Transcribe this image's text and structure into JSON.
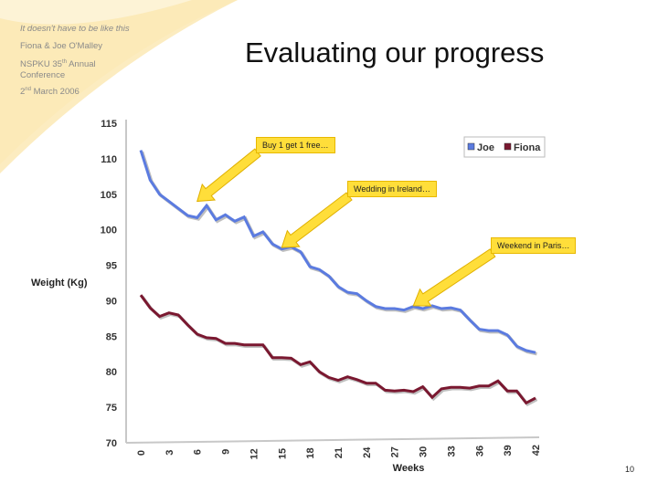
{
  "slide": {
    "header_line1": "It doesn't have to be like this",
    "header_line2": "Fiona & Joe O'Malley",
    "header_line3_pre": "NSPKU 35",
    "header_line3_sup": "th",
    "header_line3_post": " Annual Conference",
    "header_line4_pre": "2",
    "header_line4_sup": "nd",
    "header_line4_post": " March 2006",
    "title": "Evaluating our progress",
    "page_number": "10"
  },
  "colors": {
    "joe": "#5b7be0",
    "fiona": "#7a1830",
    "callout": "#ffde3a",
    "swoosh": "#fbe7b0"
  },
  "chart_data": {
    "type": "line",
    "title": "",
    "xlabel": "Weeks",
    "ylabel": "Weight (Kg)",
    "ylim": [
      70,
      115
    ],
    "yticks": [
      "70",
      "75",
      "80",
      "85",
      "90",
      "95",
      "100",
      "105",
      "110",
      "115"
    ],
    "xticks": [
      "0",
      "3",
      "6",
      "9",
      "12",
      "15",
      "18",
      "21",
      "24",
      "27",
      "30",
      "33",
      "36",
      "39",
      "42"
    ],
    "legend": [
      "Joe",
      "Fiona"
    ],
    "series": [
      {
        "name": "Joe",
        "values": [
          111.2,
          107,
          105,
          104,
          103,
          102,
          101.7,
          103.4,
          101.4,
          102.1,
          101.2,
          101.8,
          99.1,
          99.7,
          98,
          97.3,
          97.6,
          96.9,
          94.8,
          94.4,
          93.5,
          92,
          91.2,
          91,
          90,
          89.2,
          88.9,
          88.9,
          88.7,
          89.2,
          88.9,
          89.3,
          88.9,
          89,
          88.7,
          87.3,
          86,
          85.8,
          85.8,
          85.2,
          83.6,
          83,
          82.7
        ]
      },
      {
        "name": "Fiona",
        "values": [
          90.8,
          89,
          87.8,
          88.3,
          88,
          86.6,
          85.3,
          84.8,
          84.7,
          84,
          84,
          83.8,
          83.8,
          83.8,
          82,
          82,
          81.9,
          81,
          81.4,
          80,
          79.2,
          78.8,
          79.3,
          78.9,
          78.4,
          78.4,
          77.4,
          77.3,
          77.4,
          77.2,
          77.9,
          76.4,
          77.6,
          77.8,
          77.8,
          77.7,
          78,
          78,
          78.7,
          77.3,
          77.3,
          75.6,
          76.3
        ]
      }
    ],
    "annotations": [
      {
        "text": "Buy 1 get 1 free…",
        "week": 6,
        "value": 104
      },
      {
        "text": "Wedding in Ireland…",
        "week": 15,
        "value": 97.5
      },
      {
        "text": "Weekend in Paris…",
        "week": 29,
        "value": 89.3
      }
    ]
  }
}
